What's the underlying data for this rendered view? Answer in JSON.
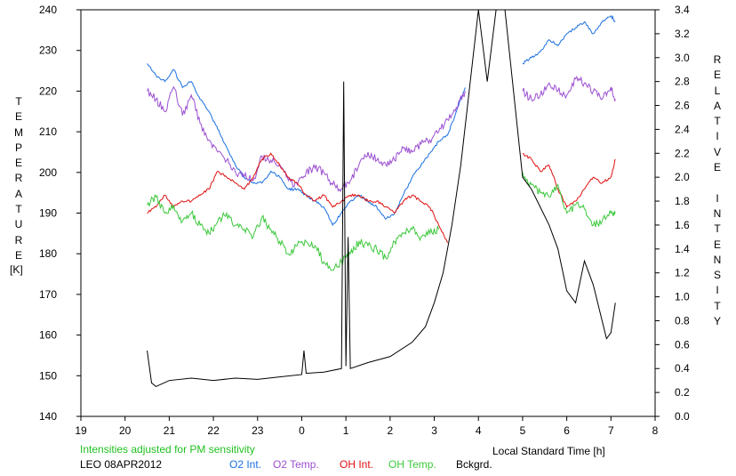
{
  "chart_data": {
    "type": "line",
    "title": "",
    "xlabel": "Local Standard Time [h]",
    "ylabel_left": "TEMPERATURE",
    "ylabel_left_unit": "[K]",
    "ylabel_right": "RELATIVE INTENSITY",
    "note": "Intensities adjusted for PM sensitivity",
    "station_date": "LEO 08APR2012",
    "grid": false,
    "legend_position": "bottom",
    "x_range": [
      19,
      32
    ],
    "x_ticks": [
      19,
      20,
      21,
      22,
      23,
      24,
      25,
      26,
      27,
      28,
      29,
      30,
      31,
      32
    ],
    "x_tick_labels": [
      "19",
      "20",
      "21",
      "22",
      "23",
      "0",
      "1",
      "2",
      "3",
      "4",
      "5",
      "6",
      "7",
      "8"
    ],
    "y_left_range": [
      140,
      240
    ],
    "y_left_ticks": [
      140,
      150,
      160,
      170,
      180,
      190,
      200,
      210,
      220,
      230,
      240
    ],
    "y_right_range": [
      0.0,
      3.4
    ],
    "y_right_ticks": [
      "0.0",
      "0.2",
      "0.4",
      "0.6",
      "0.8",
      "1.0",
      "1.2",
      "1.4",
      "1.6",
      "1.8",
      "2.0",
      "2.2",
      "2.4",
      "2.6",
      "2.8",
      "3.0",
      "3.2",
      "3.4"
    ],
    "series": [
      {
        "name": "O2 Int.",
        "color": "#1a6fe0",
        "axis": "right",
        "x": [
          20.5,
          20.7,
          20.9,
          21.1,
          21.3,
          21.5,
          21.7,
          21.9,
          22.1,
          22.3,
          22.5,
          22.7,
          22.9,
          23.1,
          23.3,
          23.5,
          23.7,
          23.9,
          24.1,
          24.3,
          24.5,
          24.7,
          24.9,
          25.1,
          25.3,
          25.5,
          25.7,
          25.9,
          26.1,
          26.3,
          26.5,
          26.7,
          26.9,
          27.1,
          27.3,
          27.5,
          27.7,
          29.0,
          29.2,
          29.4,
          29.6,
          29.8,
          30.0,
          30.2,
          30.4,
          30.6,
          30.8,
          31.0,
          31.1
        ],
        "values": [
          2.95,
          2.85,
          2.8,
          2.9,
          2.75,
          2.8,
          2.65,
          2.55,
          2.4,
          2.25,
          2.1,
          2.0,
          1.95,
          1.95,
          2.05,
          2.0,
          1.9,
          1.9,
          1.85,
          1.8,
          1.75,
          1.6,
          1.7,
          1.8,
          1.85,
          1.8,
          1.75,
          1.65,
          1.7,
          1.85,
          2.0,
          2.1,
          2.2,
          2.3,
          2.35,
          2.55,
          2.75,
          2.95,
          3.0,
          3.05,
          3.15,
          3.1,
          3.2,
          3.25,
          3.3,
          3.2,
          3.3,
          3.35,
          3.3
        ]
      },
      {
        "name": "O2 Temp.",
        "color": "#9b4fd0",
        "axis": "left",
        "x": [
          20.5,
          20.7,
          20.9,
          21.1,
          21.3,
          21.5,
          21.7,
          21.9,
          22.1,
          22.3,
          22.5,
          22.7,
          22.9,
          23.1,
          23.3,
          23.5,
          23.7,
          23.9,
          24.1,
          24.3,
          24.5,
          24.7,
          24.9,
          25.1,
          25.3,
          25.5,
          25.7,
          25.9,
          26.1,
          26.3,
          26.5,
          26.7,
          26.9,
          27.1,
          27.3,
          27.5,
          27.7,
          29.0,
          29.2,
          29.4,
          29.6,
          29.8,
          30.0,
          30.2,
          30.4,
          30.6,
          30.8,
          31.0,
          31.1
        ],
        "values": [
          220,
          218,
          215,
          221,
          214,
          219,
          212,
          208,
          205,
          203,
          200,
          199,
          198,
          204,
          203,
          202,
          198,
          197,
          200,
          201,
          200,
          197,
          196,
          198,
          202,
          205,
          203,
          202,
          203,
          206,
          205,
          207,
          208,
          210,
          213,
          216,
          220,
          220,
          218,
          219,
          222,
          220,
          219,
          223,
          222,
          220,
          218,
          221,
          218
        ]
      },
      {
        "name": "OH Int.",
        "color": "#e01010",
        "axis": "right",
        "x": [
          20.5,
          20.7,
          20.9,
          21.1,
          21.3,
          21.5,
          21.7,
          21.9,
          22.1,
          22.3,
          22.5,
          22.7,
          22.9,
          23.1,
          23.3,
          23.5,
          23.7,
          23.9,
          24.1,
          24.3,
          24.5,
          24.7,
          24.9,
          25.1,
          25.3,
          25.5,
          25.7,
          25.9,
          26.1,
          26.3,
          26.5,
          26.7,
          26.9,
          27.1,
          27.3,
          29.0,
          29.2,
          29.4,
          29.6,
          29.8,
          30.0,
          30.2,
          30.4,
          30.6,
          30.8,
          31.0,
          31.1
        ],
        "values": [
          1.7,
          1.75,
          1.85,
          1.75,
          1.8,
          1.8,
          1.85,
          1.9,
          2.05,
          2.0,
          1.95,
          1.9,
          2.0,
          2.15,
          2.2,
          2.1,
          2.0,
          1.95,
          1.85,
          1.8,
          1.85,
          1.75,
          1.8,
          1.85,
          1.85,
          1.8,
          1.8,
          1.75,
          1.7,
          1.8,
          1.85,
          1.8,
          1.75,
          1.6,
          1.45,
          2.2,
          2.15,
          2.05,
          2.1,
          1.9,
          1.75,
          1.8,
          1.9,
          2.0,
          1.95,
          2.0,
          2.15
        ]
      },
      {
        "name": "OH Temp.",
        "color": "#3cc83c",
        "axis": "left",
        "x": [
          20.5,
          20.7,
          20.9,
          21.1,
          21.3,
          21.5,
          21.7,
          21.9,
          22.1,
          22.3,
          22.5,
          22.7,
          22.9,
          23.1,
          23.3,
          23.5,
          23.7,
          23.9,
          24.1,
          24.3,
          24.5,
          24.7,
          24.9,
          25.1,
          25.3,
          25.5,
          25.7,
          25.9,
          26.1,
          26.3,
          26.5,
          26.7,
          26.9,
          27.1,
          29.0,
          29.2,
          29.4,
          29.6,
          29.8,
          30.0,
          30.2,
          30.4,
          30.6,
          30.8,
          31.0,
          31.1
        ],
        "values": [
          192,
          194,
          190,
          192,
          188,
          190,
          187,
          185,
          188,
          190,
          187,
          186,
          184,
          189,
          186,
          183,
          180,
          182,
          183,
          182,
          178,
          176,
          178,
          180,
          183,
          182,
          181,
          179,
          183,
          185,
          186,
          184,
          185,
          186,
          200,
          197,
          195,
          194,
          197,
          190,
          192,
          191,
          187,
          188,
          190,
          190
        ]
      },
      {
        "name": "Bckgrd.",
        "color": "#000000",
        "axis": "right",
        "x": [
          20.5,
          20.6,
          20.7,
          21.0,
          21.5,
          22.0,
          22.5,
          23.0,
          23.5,
          24.0,
          24.05,
          24.1,
          24.5,
          24.9,
          24.95,
          25.0,
          25.05,
          25.1,
          25.5,
          26.0,
          26.5,
          26.8,
          27.0,
          27.2,
          27.4,
          27.6,
          28.0,
          28.2,
          28.4,
          28.6,
          29.0,
          29.2,
          29.4,
          29.6,
          29.8,
          30.0,
          30.2,
          30.4,
          30.6,
          30.8,
          30.9,
          31.0,
          31.1
        ],
        "values": [
          0.55,
          0.28,
          0.25,
          0.3,
          0.32,
          0.3,
          0.32,
          0.31,
          0.33,
          0.35,
          0.55,
          0.36,
          0.37,
          0.4,
          2.8,
          0.42,
          1.5,
          0.4,
          0.45,
          0.5,
          0.62,
          0.75,
          0.95,
          1.2,
          1.6,
          2.1,
          3.4,
          2.8,
          3.4,
          3.4,
          2.0,
          1.9,
          1.75,
          1.6,
          1.4,
          1.05,
          0.95,
          1.3,
          1.1,
          0.8,
          0.65,
          0.7,
          0.95
        ]
      }
    ]
  }
}
